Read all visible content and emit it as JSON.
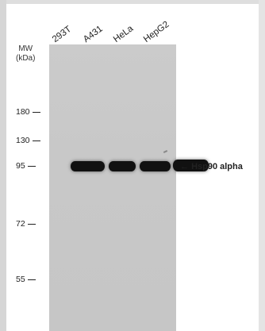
{
  "lanes": [
    "293T",
    "A431",
    "HeLa",
    "HepG2"
  ],
  "mw_header": [
    "MW",
    "(kDa)"
  ],
  "markers": [
    "180",
    "130",
    "95",
    "72",
    "55"
  ],
  "target_arrow": "←",
  "target_label": "Hsp90 alpha"
}
